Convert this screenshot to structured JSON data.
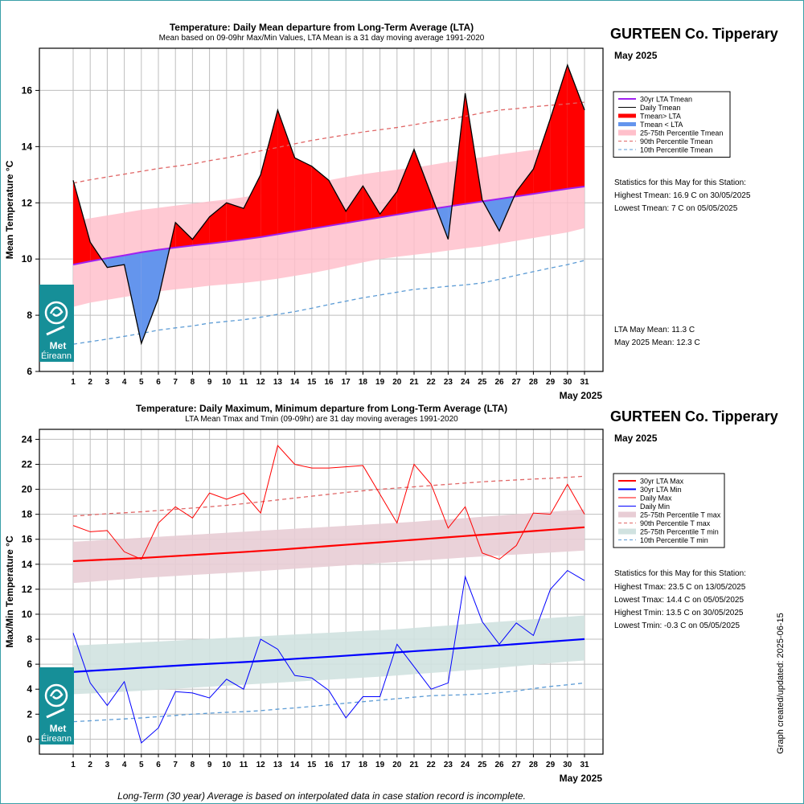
{
  "station": {
    "name": "GURTEEN Co. Tipperary",
    "period": "May 2025"
  },
  "footnote": "Long-Term (30 year) Average is based on interpolated data in case station record is incomplete.",
  "updated": "Graph created/updated:  2025-06-15",
  "logo": {
    "line1": "Met",
    "line2": "Éireann"
  },
  "top": {
    "stats_heading": "Statistics for this May for this Station:",
    "stats": [
      "Highest Tmean: 16.9 C on 30/05/2025",
      "Lowest Tmean: 7 C on 05/05/2025"
    ],
    "means": [
      "LTA May Mean: 11.3 C",
      "May 2025 Mean: 12.3 C"
    ]
  },
  "bottom": {
    "stats_heading": "Statistics for this May for this Station:",
    "stats": [
      "Highest Tmax: 23.5 C on 13/05/2025",
      "Lowest Tmax: 14.4 C on 05/05/2025",
      "Highest Tmin: 13.5 C on 30/05/2025",
      "Lowest Tmin: -0.3 C on 05/05/2025"
    ]
  },
  "colors": {
    "above": "#ff0000",
    "below": "#6495ed",
    "lta": "#a020f0",
    "band": "#ffc0cb",
    "p90": "#e06666",
    "p10": "#5b9bd5",
    "max": "#ff0000",
    "min": "#0000ff",
    "band_max": "#e8cdd5",
    "band_min": "#d0e2e0",
    "grid": "#bebebe",
    "logo": "#168f98"
  },
  "chart_data": [
    {
      "type": "area",
      "title": "Temperature: Daily Mean departure from Long-Term Average (LTA)",
      "subtitle": "Mean based on 09-09hr Max/Min Values, LTA Mean is a 31 day moving average 1991-2020",
      "xlabel": "May 2025",
      "ylabel": "Mean Temperature °C",
      "ylim": [
        6,
        17.5
      ],
      "yticks": [
        6,
        8,
        10,
        12,
        14,
        16
      ],
      "legend": [
        "30yr LTA Tmean",
        "Daily Tmean",
        "Tmean> LTA",
        "Tmean < LTA",
        "25-75th Percentile Tmean",
        "90th Percentile Tmean",
        "10th Percentile Tmean"
      ],
      "legend_position": "right",
      "x": [
        1,
        2,
        3,
        4,
        5,
        6,
        7,
        8,
        9,
        10,
        11,
        12,
        13,
        14,
        15,
        16,
        17,
        18,
        19,
        20,
        21,
        22,
        23,
        24,
        25,
        26,
        27,
        28,
        29,
        30,
        31
      ],
      "series": [
        {
          "name": "Daily Tmean",
          "values": [
            12.8,
            10.6,
            9.7,
            9.8,
            7.0,
            8.6,
            11.3,
            10.7,
            11.5,
            12.0,
            11.8,
            13.0,
            15.3,
            13.6,
            13.3,
            12.8,
            11.7,
            12.6,
            11.6,
            12.4,
            13.9,
            12.3,
            10.7,
            15.9,
            12.1,
            11.0,
            12.4,
            13.2,
            15.0,
            16.9,
            15.3
          ]
        },
        {
          "name": "30yr LTA Tmean",
          "values": [
            9.8,
            9.92,
            10.03,
            10.13,
            10.24,
            10.33,
            10.41,
            10.48,
            10.55,
            10.62,
            10.7,
            10.78,
            10.88,
            10.98,
            11.08,
            11.18,
            11.28,
            11.38,
            11.48,
            11.58,
            11.68,
            11.78,
            11.87,
            11.96,
            12.05,
            12.14,
            12.23,
            12.32,
            12.41,
            12.5,
            12.58
          ]
        },
        {
          "name": "25th Percentile Tmean",
          "values": [
            8.3,
            8.45,
            8.55,
            8.65,
            8.75,
            8.85,
            8.92,
            8.98,
            9.05,
            9.1,
            9.15,
            9.22,
            9.3,
            9.4,
            9.5,
            9.62,
            9.75,
            9.88,
            10.0,
            10.08,
            10.15,
            10.22,
            10.3,
            10.38,
            10.45,
            10.55,
            10.65,
            10.75,
            10.85,
            10.95,
            11.1
          ]
        },
        {
          "name": "75th Percentile Tmean",
          "values": [
            11.35,
            11.45,
            11.55,
            11.65,
            11.75,
            11.82,
            11.9,
            11.97,
            12.05,
            12.12,
            12.2,
            12.3,
            12.42,
            12.55,
            12.68,
            12.8,
            12.92,
            13.02,
            13.1,
            13.18,
            13.25,
            13.35,
            13.45,
            13.55,
            13.62,
            13.72,
            13.8,
            13.88,
            13.95,
            14.02,
            14.1
          ]
        },
        {
          "name": "90th Percentile Tmean",
          "values": [
            12.7,
            12.82,
            12.92,
            13.02,
            13.12,
            13.22,
            13.3,
            13.38,
            13.5,
            13.6,
            13.72,
            13.85,
            13.97,
            14.1,
            14.22,
            14.32,
            14.42,
            14.52,
            14.6,
            14.68,
            14.78,
            14.88,
            14.97,
            15.08,
            15.2,
            15.3,
            15.35,
            15.42,
            15.47,
            15.52,
            15.58
          ]
        },
        {
          "name": "10th Percentile Tmean",
          "values": [
            6.97,
            7.06,
            7.15,
            7.25,
            7.35,
            7.47,
            7.55,
            7.62,
            7.72,
            7.78,
            7.84,
            7.93,
            8.03,
            8.13,
            8.25,
            8.38,
            8.5,
            8.62,
            8.72,
            8.82,
            8.92,
            8.97,
            9.03,
            9.08,
            9.15,
            9.28,
            9.42,
            9.55,
            9.68,
            9.8,
            9.95
          ]
        }
      ]
    },
    {
      "type": "line",
      "title": "Temperature: Daily Maximum, Minimum departure from Long-Term Average (LTA)",
      "subtitle": "LTA Mean Tmax and Tmin (09-09hr) are 31 day moving averages 1991-2020",
      "xlabel": "May 2025",
      "ylabel": "Max/Min Temperature °C",
      "ylim": [
        -1.2,
        24.8
      ],
      "yticks": [
        0,
        2,
        4,
        6,
        8,
        10,
        12,
        14,
        16,
        18,
        20,
        22,
        24
      ],
      "legend": [
        "30yr LTA Max",
        "30yr LTA Min",
        "Daily Max",
        "Daily Min",
        "25-75th Percentile T max",
        "90th Percentile T max",
        "25-75th Percentile T min",
        "10th Percentile T min"
      ],
      "legend_position": "right",
      "x": [
        1,
        2,
        3,
        4,
        5,
        6,
        7,
        8,
        9,
        10,
        11,
        12,
        13,
        14,
        15,
        16,
        17,
        18,
        19,
        20,
        21,
        22,
        23,
        24,
        25,
        26,
        27,
        28,
        29,
        30,
        31
      ],
      "series": [
        {
          "name": "Daily Max",
          "values": [
            17.1,
            16.6,
            16.7,
            15.0,
            14.4,
            17.3,
            18.6,
            17.7,
            19.7,
            19.2,
            19.7,
            18.1,
            23.5,
            22.0,
            21.7,
            21.7,
            21.8,
            21.9,
            19.6,
            17.3,
            22.0,
            20.4,
            16.9,
            18.6,
            14.9,
            14.4,
            15.5,
            18.1,
            18.0,
            20.4,
            18.0
          ]
        },
        {
          "name": "Daily Min",
          "values": [
            8.5,
            4.5,
            2.7,
            4.6,
            -0.3,
            0.9,
            3.8,
            3.7,
            3.3,
            4.8,
            4.0,
            8.0,
            7.2,
            5.1,
            4.9,
            3.9,
            1.7,
            3.4,
            3.4,
            7.6,
            5.8,
            4.0,
            4.5,
            13.0,
            9.4,
            7.6,
            9.3,
            8.3,
            12.0,
            13.5,
            12.7
          ]
        },
        {
          "name": "30yr LTA Max",
          "values": [
            14.25,
            14.32,
            14.38,
            14.44,
            14.5,
            14.58,
            14.66,
            14.74,
            14.82,
            14.9,
            14.98,
            15.07,
            15.16,
            15.26,
            15.36,
            15.46,
            15.56,
            15.66,
            15.76,
            15.86,
            15.96,
            16.06,
            16.16,
            16.26,
            16.36,
            16.46,
            16.56,
            16.66,
            16.76,
            16.86,
            16.96
          ]
        },
        {
          "name": "30yr LTA Min",
          "values": [
            5.38,
            5.47,
            5.55,
            5.63,
            5.72,
            5.8,
            5.88,
            5.96,
            6.03,
            6.1,
            6.17,
            6.25,
            6.34,
            6.43,
            6.51,
            6.59,
            6.68,
            6.77,
            6.86,
            6.95,
            7.04,
            7.13,
            7.22,
            7.31,
            7.41,
            7.51,
            7.61,
            7.71,
            7.81,
            7.91,
            8.01
          ]
        },
        {
          "name": "25th Percentile T max",
          "values": [
            12.5,
            12.6,
            12.7,
            12.8,
            12.9,
            12.98,
            13.06,
            13.14,
            13.22,
            13.3,
            13.38,
            13.46,
            13.55,
            13.64,
            13.73,
            13.82,
            13.91,
            14.0,
            14.09,
            14.18,
            14.27,
            14.36,
            14.45,
            14.54,
            14.62,
            14.7,
            14.78,
            14.86,
            14.94,
            15.02,
            15.1
          ]
        },
        {
          "name": "75th Percentile T max",
          "values": [
            15.8,
            15.88,
            15.96,
            16.04,
            16.12,
            16.2,
            16.28,
            16.36,
            16.44,
            16.52,
            16.6,
            16.68,
            16.76,
            16.84,
            16.92,
            17.0,
            17.08,
            17.16,
            17.24,
            17.32,
            17.4,
            17.5,
            17.6,
            17.7,
            17.8,
            17.9,
            18.0,
            18.1,
            18.2,
            18.3,
            18.4
          ]
        },
        {
          "name": "90th Percentile T max",
          "values": [
            17.85,
            17.95,
            18.05,
            18.12,
            18.2,
            18.3,
            18.4,
            18.5,
            18.6,
            18.72,
            18.85,
            19.0,
            19.15,
            19.3,
            19.45,
            19.6,
            19.75,
            19.88,
            20.0,
            20.1,
            20.2,
            20.3,
            20.4,
            20.5,
            20.6,
            20.68,
            20.75,
            20.82,
            20.88,
            20.95,
            21.05
          ]
        },
        {
          "name": "25th Percentile T min",
          "values": [
            3.6,
            3.66,
            3.72,
            3.8,
            3.88,
            3.96,
            4.04,
            4.12,
            4.2,
            4.28,
            4.36,
            4.44,
            4.52,
            4.6,
            4.68,
            4.76,
            4.84,
            4.92,
            5.0,
            5.1,
            5.2,
            5.3,
            5.4,
            5.5,
            5.6,
            5.72,
            5.84,
            5.96,
            6.08,
            6.2,
            6.3
          ]
        },
        {
          "name": "75th Percentile T min",
          "values": [
            7.5,
            7.56,
            7.62,
            7.68,
            7.75,
            7.82,
            7.89,
            7.96,
            8.03,
            8.1,
            8.17,
            8.24,
            8.31,
            8.38,
            8.45,
            8.52,
            8.59,
            8.66,
            8.73,
            8.8,
            8.9,
            9.0,
            9.1,
            9.2,
            9.3,
            9.4,
            9.5,
            9.6,
            9.7,
            9.8,
            9.9
          ]
        },
        {
          "name": "10th Percentile T min",
          "values": [
            1.4,
            1.47,
            1.55,
            1.62,
            1.7,
            1.8,
            1.9,
            2.0,
            2.08,
            2.15,
            2.2,
            2.28,
            2.4,
            2.5,
            2.62,
            2.75,
            2.88,
            3.0,
            3.12,
            3.24,
            3.36,
            3.48,
            3.52,
            3.56,
            3.62,
            3.72,
            3.85,
            4.05,
            4.22,
            4.35,
            4.5
          ]
        }
      ]
    }
  ]
}
